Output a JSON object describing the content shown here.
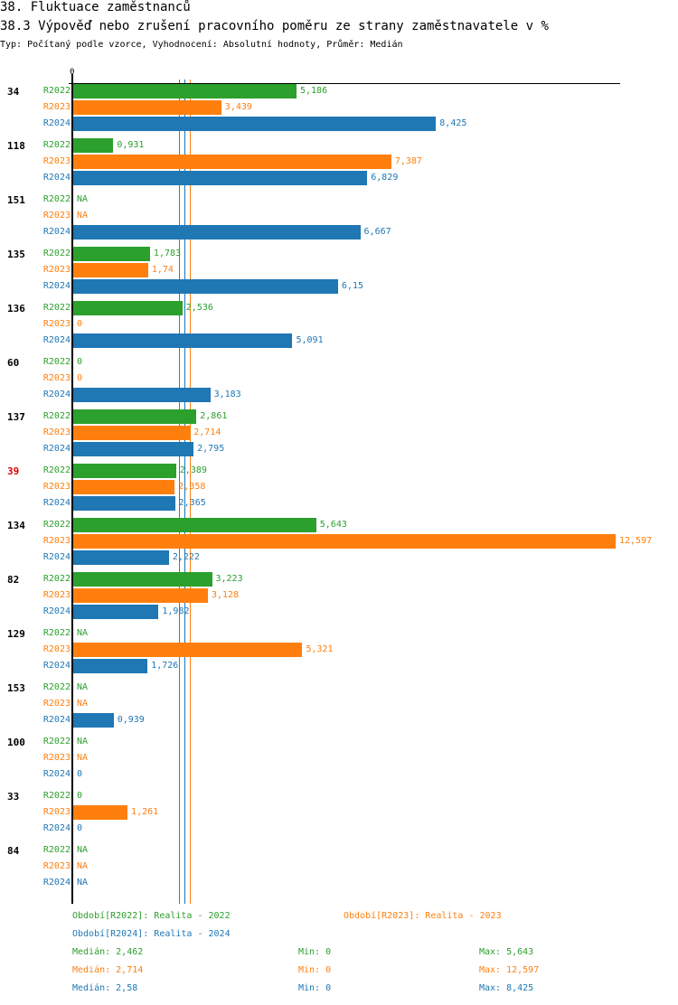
{
  "header": {
    "title": "38. Fluktuace zaměstnanců",
    "subtitle": "38.3 Výpověď nebo zrušení pracovního poměru ze strany zaměstnavatele v %",
    "info": "Typ: Počítaný podle vzorce, Vyhodnocení: Absolutní hodnoty, Průměr: Medián"
  },
  "chart_data": {
    "type": "bar",
    "orientation": "horizontal",
    "title": "38.3 Výpověď nebo zrušení pracovního poměru ze strany zaměstnavatele v %",
    "xlim": [
      0,
      12.597
    ],
    "axis_tick": "0",
    "highlight_category": "39",
    "highlight_color": "#e00000",
    "categories": [
      "34",
      "118",
      "151",
      "135",
      "136",
      "60",
      "137",
      "39",
      "134",
      "82",
      "129",
      "153",
      "100",
      "33",
      "84"
    ],
    "series": [
      {
        "name": "R2022",
        "color": "#2ca02c",
        "values": [
          5.186,
          0.931,
          null,
          1.783,
          2.536,
          0,
          2.861,
          2.389,
          5.643,
          3.223,
          null,
          null,
          null,
          0,
          null
        ],
        "labels": [
          "5,186",
          "0,931",
          "NA",
          "1,783",
          "2,536",
          "0",
          "2,861",
          "2,389",
          "5,643",
          "3,223",
          "NA",
          "NA",
          "NA",
          "0",
          "NA"
        ],
        "median": 2.462
      },
      {
        "name": "R2023",
        "color": "#ff7f0e",
        "values": [
          3.439,
          7.387,
          null,
          1.74,
          0,
          0,
          2.714,
          2.358,
          12.597,
          3.128,
          5.321,
          null,
          null,
          1.261,
          null
        ],
        "labels": [
          "3,439",
          "7,387",
          "NA",
          "1,74",
          "0",
          "0",
          "2,714",
          "2,358",
          "12,597",
          "3,128",
          "5,321",
          "NA",
          "NA",
          "1,261",
          "NA"
        ],
        "median": 2.714
      },
      {
        "name": "R2024",
        "color": "#1f77b4",
        "values": [
          8.425,
          6.829,
          6.667,
          6.15,
          5.091,
          3.183,
          2.795,
          2.365,
          2.222,
          1.982,
          1.726,
          0.939,
          0,
          0,
          null
        ],
        "labels": [
          "8,425",
          "6,829",
          "6,667",
          "6,15",
          "5,091",
          "3,183",
          "2,795",
          "2,365",
          "2,222",
          "1,982",
          "1,726",
          "0,939",
          "0",
          "0",
          "NA"
        ],
        "median": 2.58
      }
    ]
  },
  "legend": {
    "periods": [
      "Období[R2022]: Realita - 2022",
      "Období[R2023]: Realita - 2023",
      "Období[R2024]: Realita - 2024"
    ],
    "stats": [
      {
        "median": "Medián: 2,462",
        "min": "Min: 0",
        "max": "Max: 5,643"
      },
      {
        "median": "Medián: 2,714",
        "min": "Min: 0",
        "max": "Max: 12,597"
      },
      {
        "median": "Medián: 2,58",
        "min": "Min: 0",
        "max": "Max: 8,425"
      }
    ]
  }
}
